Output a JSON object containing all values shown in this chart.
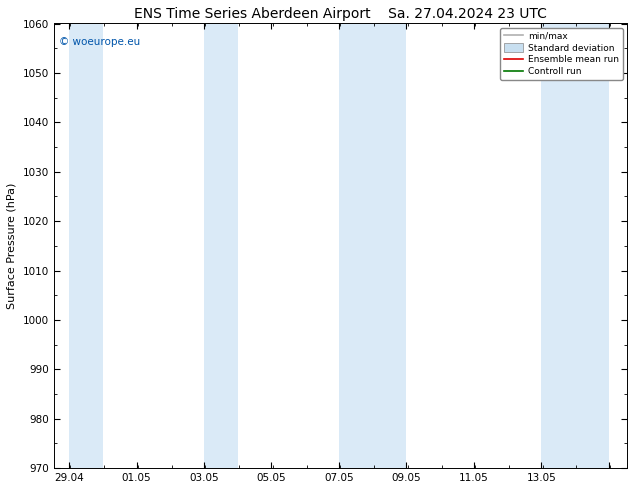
{
  "title": "ENS Time Series Aberdeen Airport",
  "title_right": "Sa. 27.04.2024 23 UTC",
  "ylabel": "Surface Pressure (hPa)",
  "ylabel_fontsize": 8,
  "ylim": [
    970,
    1060
  ],
  "yticks": [
    970,
    980,
    990,
    1000,
    1010,
    1020,
    1030,
    1040,
    1050,
    1060
  ],
  "background_color": "#ffffff",
  "plot_bg_color": "#ffffff",
  "shaded_band_color": "#daeaf7",
  "watermark": "© woeurope.eu",
  "watermark_color": "#0055aa",
  "legend_items": [
    {
      "label": "min/max",
      "color": "#b0b0b0",
      "lw": 1.2,
      "type": "line"
    },
    {
      "label": "Standard deviation",
      "color": "#c8dff0",
      "lw": 6,
      "type": "band"
    },
    {
      "label": "Ensemble mean run",
      "color": "#dd0000",
      "lw": 1.2,
      "type": "line"
    },
    {
      "label": "Controll run",
      "color": "#007700",
      "lw": 1.2,
      "type": "line"
    }
  ],
  "shaded_columns": [
    {
      "xstart": 27.958,
      "xend": 28.958,
      "color": "#daeaf7"
    },
    {
      "xstart": 31.958,
      "xend": 32.958,
      "color": "#daeaf7"
    },
    {
      "xstart": 35.958,
      "xend": 37.958,
      "color": "#daeaf7"
    },
    {
      "xstart": 41.958,
      "xend": 43.958,
      "color": "#daeaf7"
    }
  ],
  "xtick_positions": [
    27.958,
    29.958,
    31.958,
    33.958,
    35.958,
    37.958,
    39.958,
    41.958,
    43.958
  ],
  "xtick_labels": [
    "29.04",
    "01.05",
    "03.05",
    "05.05",
    "07.05",
    "09.05",
    "11.05",
    "13.05",
    ""
  ],
  "xlim_start": 27.5,
  "xlim_end": 44.5,
  "title_fontsize": 10,
  "tick_fontsize": 7.5,
  "fig_width": 6.34,
  "fig_height": 4.9,
  "dpi": 100
}
